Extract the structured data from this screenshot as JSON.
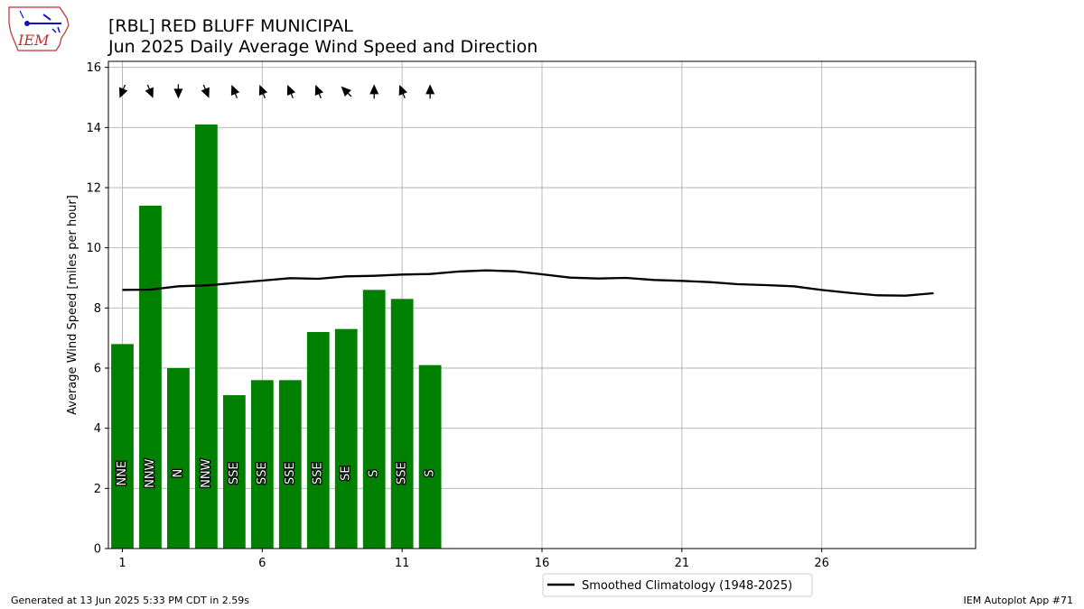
{
  "header": {
    "title_line1": "[RBL] RED BLUFF MUNICIPAL",
    "title_line2": "Jun 2025 Daily Average Wind Speed and Direction",
    "logo_text": "IEM"
  },
  "footer": {
    "generated": "Generated at 13 Jun 2025 5:33 PM CDT in 2.59s",
    "app": "IEM Autoplot App #71"
  },
  "colors": {
    "bar": "#008000",
    "climatology": "#000000",
    "grid": "#b0b0b0"
  },
  "chart_data": {
    "type": "bar",
    "ylabel": "Average Wind Speed [miles per hour]",
    "xlabel": "",
    "ylim": [
      0,
      16.2
    ],
    "xlim": [
      0.5,
      31.5
    ],
    "xticks": [
      1,
      6,
      11,
      16,
      21,
      26
    ],
    "yticks": [
      0,
      2,
      4,
      6,
      8,
      10,
      12,
      14,
      16
    ],
    "grid": true,
    "legend_placement": "bottom-center",
    "days": [
      1,
      2,
      3,
      4,
      5,
      6,
      7,
      8,
      9,
      10,
      11,
      12
    ],
    "values": [
      6.8,
      11.4,
      6.0,
      14.1,
      5.1,
      5.6,
      5.6,
      7.2,
      7.3,
      8.6,
      8.3,
      6.1
    ],
    "direction_labels": [
      "NNE",
      "NNW",
      "N",
      "NNW",
      "SSE",
      "SSE",
      "SSE",
      "SSE",
      "SE",
      "S",
      "SSE",
      "S"
    ],
    "direction_degrees": [
      22.5,
      337.5,
      0,
      337.5,
      157.5,
      157.5,
      157.5,
      157.5,
      135,
      180,
      157.5,
      180
    ],
    "climatology": {
      "name": "Smoothed Climatology (1948-2025)",
      "x": [
        1,
        2,
        3,
        4,
        5,
        6,
        7,
        8,
        9,
        10,
        11,
        12,
        13,
        14,
        15,
        16,
        17,
        18,
        19,
        20,
        21,
        22,
        23,
        24,
        25,
        26,
        27,
        28,
        29,
        30
      ],
      "values": [
        8.6,
        8.61,
        8.72,
        8.75,
        8.83,
        8.91,
        8.99,
        8.97,
        9.05,
        9.07,
        9.11,
        9.13,
        9.21,
        9.25,
        9.22,
        9.12,
        9.01,
        8.98,
        9.0,
        8.93,
        8.9,
        8.86,
        8.79,
        8.76,
        8.72,
        8.6,
        8.5,
        8.42,
        8.41,
        8.49
      ]
    }
  }
}
